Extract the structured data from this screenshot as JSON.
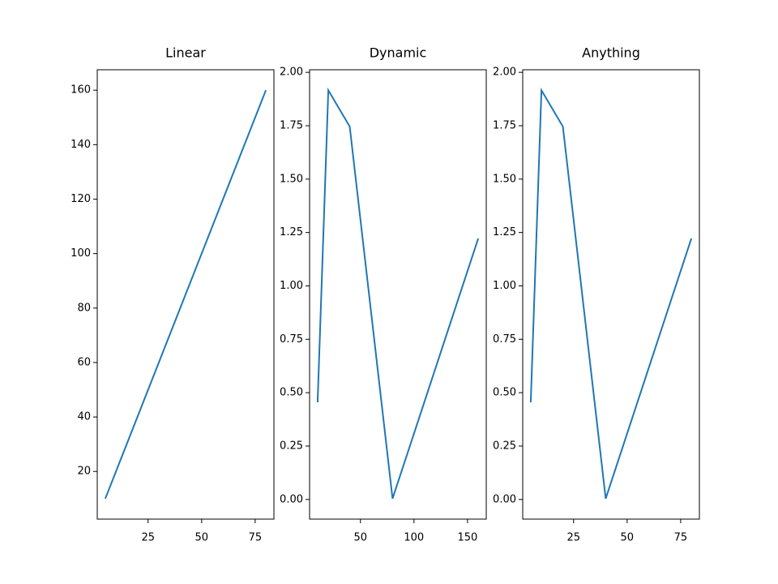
{
  "chart_data": [
    {
      "type": "line",
      "title": "Linear",
      "x": [
        5,
        10,
        20,
        40,
        80
      ],
      "series": [
        {
          "color": "#1f77b4",
          "values": [
            10,
            20,
            40,
            80,
            160
          ]
        }
      ],
      "xlim": [
        1.25,
        83.75
      ],
      "xticks": [
        25,
        50,
        75
      ],
      "ylim": [
        2.5,
        167.5
      ],
      "yticks": [
        20,
        40,
        60,
        80,
        100,
        120,
        140,
        160
      ]
    },
    {
      "type": "line",
      "title": "Dynamic",
      "x": [
        10,
        20,
        40,
        80,
        160
      ],
      "series": [
        {
          "color": "#1f77b4",
          "values": [
            0.455,
            1.916,
            1.746,
            0.004,
            1.222
          ]
        }
      ],
      "xlim": [
        2.5,
        167.5
      ],
      "xticks": [
        50,
        100,
        150
      ],
      "ylim": [
        -0.092,
        2.012
      ],
      "yticks": [
        {
          "value": 0,
          "label": "0.00"
        },
        {
          "value": 0.25,
          "label": "0.25"
        },
        {
          "value": 0.5,
          "label": "0.50"
        },
        {
          "value": 0.75,
          "label": "0.75"
        },
        {
          "value": 1,
          "label": "1.00"
        },
        {
          "value": 1.25,
          "label": "1.25"
        },
        {
          "value": 1.5,
          "label": "1.50"
        },
        {
          "value": 1.75,
          "label": "1.75"
        },
        {
          "value": 2,
          "label": "2.00"
        }
      ]
    },
    {
      "type": "line",
      "title": "Anything",
      "x": [
        5,
        10,
        20,
        40,
        80
      ],
      "series": [
        {
          "color": "#1f77b4",
          "values": [
            0.455,
            1.916,
            1.746,
            0.004,
            1.222
          ]
        }
      ],
      "xlim": [
        1.25,
        83.75
      ],
      "xticks": [
        25,
        50,
        75
      ],
      "ylim": [
        -0.092,
        2.012
      ],
      "yticks": [
        {
          "value": 0,
          "label": "0.00"
        },
        {
          "value": 0.25,
          "label": "0.25"
        },
        {
          "value": 0.5,
          "label": "0.50"
        },
        {
          "value": 0.75,
          "label": "0.75"
        },
        {
          "value": 1,
          "label": "1.00"
        },
        {
          "value": 1.25,
          "label": "1.25"
        },
        {
          "value": 1.5,
          "label": "1.50"
        },
        {
          "value": 1.75,
          "label": "1.75"
        },
        {
          "value": 2,
          "label": "2.00"
        }
      ]
    }
  ]
}
